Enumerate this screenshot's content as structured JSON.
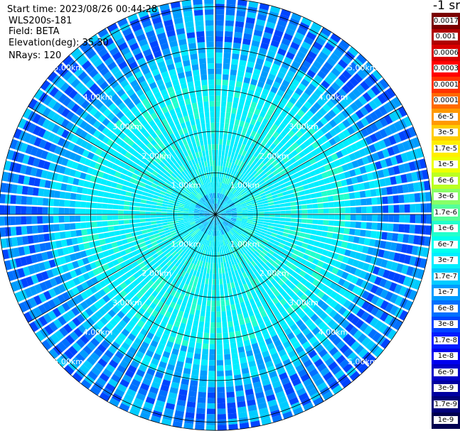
{
  "info": {
    "start_time": "Start time: 2023/08/26 00:44:28",
    "instrument": "WLS200s-181",
    "field": "Field: BETA",
    "elevation": "Elevation(deg): 35.30",
    "nrays": "NRays: 120"
  },
  "colorbar": {
    "unit": "-1 sr",
    "labels": [
      "0.0017",
      "0.001",
      "0.0006",
      "0.0003",
      "0.00017",
      "0.0001",
      "6e-5",
      "3e-5",
      "1.7e-5",
      "1e-5",
      "6e-6",
      "3e-6",
      "1.7e-6",
      "1e-6",
      "6e-7",
      "3e-7",
      "1.7e-7",
      "1e-7",
      "6e-8",
      "3e-8",
      "1.7e-8",
      "1e-8",
      "6e-9",
      "3e-9",
      "1.7e-9",
      "1e-9"
    ],
    "colors": [
      "#7a0000",
      "#b00000",
      "#d80000",
      "#ff0000",
      "#ff3300",
      "#ff6a00",
      "#ff9900",
      "#ffcc00",
      "#ffee00",
      "#eeff00",
      "#bbff22",
      "#88ff66",
      "#55ff99",
      "#22ffcc",
      "#00ffee",
      "#00eeff",
      "#00ccff",
      "#009cff",
      "#0070ff",
      "#0044ff",
      "#001cff",
      "#0000ee",
      "#0000c8",
      "#0000a0",
      "#000078",
      "#000050"
    ]
  },
  "chart_data": {
    "type": "heatmap",
    "projection": "polar-ppi",
    "n_rays": 120,
    "range_max_km": 5.2,
    "range_rings_km": [
      1,
      2,
      3,
      4,
      5
    ],
    "range_ring_labels": [
      "1.00km",
      "2.00km",
      "3.00km",
      "4.00km",
      "5.00km"
    ],
    "azimuth_spokes_deg": [
      0,
      30,
      60,
      90,
      120,
      150,
      180,
      210,
      240,
      270,
      300,
      330
    ],
    "range_bins": [
      {
        "from_km": 0.0,
        "to_km": 0.5,
        "dominant_value": "1.7e-7 to 3e-7",
        "mix": [
          "#00eeff",
          "#00ccff",
          "#009cff"
        ]
      },
      {
        "from_km": 0.5,
        "to_km": 3.3,
        "dominant_value": "3e-7",
        "mix": [
          "#00eeff",
          "#00eeff",
          "#00eeff",
          "#22ffcc"
        ]
      },
      {
        "from_km": 3.3,
        "to_km": 4.0,
        "dominant_value": "1.7e-7",
        "mix": [
          "#00ccff",
          "#009cff",
          "#00eeff"
        ]
      },
      {
        "from_km": 4.0,
        "to_km": 5.2,
        "dominant_value": "1e-7",
        "mix": [
          "#009cff",
          "#0070ff",
          "#00ccff",
          "#0044ff"
        ]
      }
    ]
  }
}
